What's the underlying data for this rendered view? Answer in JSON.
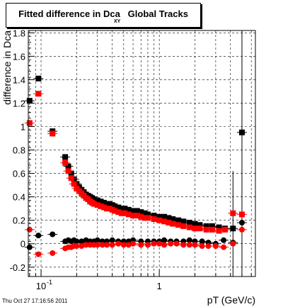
{
  "title": {
    "main": "Fitted difference in Dca",
    "sub": "XY",
    "suffix": "Global Tracks"
  },
  "timestamp": "Thu Oct 27 17:16:56 2011",
  "chart_data": {
    "type": "scatter",
    "title": "Fitted difference in Dca XY Global Tracks",
    "xlabel": "pT (GeV/c)",
    "ylabel": "difference in Dca",
    "x_scale": "log",
    "xlim": [
      0.078,
      6.5
    ],
    "ylim": [
      -0.28,
      1.82
    ],
    "yticks": [
      -0.2,
      0,
      0.2,
      0.4,
      0.6,
      0.8,
      1,
      1.2,
      1.4,
      1.6,
      1.8
    ],
    "ytick_labels": [
      "-0.2",
      "0",
      "0.2",
      "0.4",
      "0.6",
      "0.8",
      "1",
      "1.2",
      "1.4",
      "1.6",
      "1.8"
    ],
    "xtick_labels": [
      {
        "value": 0.1,
        "label": "10",
        "sup": "-1"
      },
      {
        "value": 1,
        "label": "1",
        "sup": ""
      }
    ],
    "grid": true,
    "colors": {
      "black": "#000000",
      "red": "#ff0000"
    },
    "series": [
      {
        "color": "black",
        "marker": "square",
        "x": [
          0.08,
          0.095,
          0.125,
          0.16,
          0.17,
          0.18,
          0.19,
          0.2,
          0.21,
          0.22,
          0.23,
          0.24,
          0.25,
          0.26,
          0.27,
          0.28,
          0.3,
          0.32,
          0.34,
          0.36,
          0.38,
          0.4,
          0.42,
          0.45,
          0.48,
          0.51,
          0.55,
          0.6,
          0.65,
          0.7,
          0.75,
          0.8,
          0.9,
          1.0,
          1.1,
          1.2,
          1.3,
          1.45,
          1.6,
          1.8,
          2.0,
          2.2,
          2.5,
          2.8,
          3.2,
          3.6,
          4.2,
          5.0
        ],
        "y": [
          1.22,
          1.41,
          0.96,
          0.74,
          0.66,
          0.6,
          0.55,
          0.51,
          0.48,
          0.46,
          0.44,
          0.42,
          0.41,
          0.4,
          0.39,
          0.38,
          0.37,
          0.36,
          0.35,
          0.34,
          0.34,
          0.33,
          0.32,
          0.31,
          0.3,
          0.3,
          0.29,
          0.28,
          0.28,
          0.27,
          0.26,
          0.25,
          0.24,
          0.23,
          0.23,
          0.22,
          0.21,
          0.2,
          0.19,
          0.18,
          0.17,
          0.16,
          0.15,
          0.15,
          0.14,
          0.13,
          0.13,
          0.95
        ]
      },
      {
        "color": "red",
        "marker": "square",
        "x": [
          0.08,
          0.095,
          0.125,
          0.16,
          0.17,
          0.18,
          0.19,
          0.2,
          0.21,
          0.22,
          0.23,
          0.24,
          0.25,
          0.26,
          0.27,
          0.28,
          0.3,
          0.32,
          0.34,
          0.36,
          0.38,
          0.4,
          0.42,
          0.45,
          0.48,
          0.51,
          0.55,
          0.6,
          0.65,
          0.7,
          0.75,
          0.8,
          0.9,
          1.0,
          1.1,
          1.2,
          1.3,
          1.45,
          1.6,
          1.8,
          2.0,
          2.2,
          2.5,
          2.8,
          3.2,
          3.6,
          4.2,
          5.0
        ],
        "y": [
          1.03,
          1.28,
          0.94,
          0.69,
          0.62,
          0.56,
          0.51,
          0.47,
          0.45,
          0.43,
          0.41,
          0.39,
          0.38,
          0.36,
          0.35,
          0.34,
          0.33,
          0.32,
          0.31,
          0.3,
          0.3,
          0.29,
          0.28,
          0.27,
          0.26,
          0.26,
          0.25,
          0.24,
          0.24,
          0.23,
          0.22,
          0.22,
          0.21,
          0.2,
          0.19,
          0.18,
          0.17,
          0.16,
          0.15,
          0.14,
          0.13,
          0.13,
          0.12,
          0.12,
          0.11,
          0.12,
          0.26,
          0.25
        ]
      },
      {
        "color": "black",
        "marker": "circle",
        "x": [
          0.08,
          0.095,
          0.125,
          0.16,
          0.17,
          0.18,
          0.19,
          0.2,
          0.22,
          0.24,
          0.26,
          0.28,
          0.3,
          0.33,
          0.36,
          0.4,
          0.45,
          0.5,
          0.55,
          0.6,
          0.7,
          0.8,
          0.9,
          1.0,
          1.1,
          1.25,
          1.4,
          1.6,
          1.8,
          2.0,
          2.3,
          2.6,
          3.0,
          3.5,
          4.2,
          5.0
        ],
        "y": [
          -0.03,
          0.07,
          0.08,
          0.02,
          0.03,
          0.02,
          0.03,
          0.02,
          0.02,
          0.03,
          0.02,
          0.02,
          0.03,
          0.02,
          0.02,
          0.03,
          0.02,
          0.02,
          0.02,
          0.03,
          0.02,
          0.02,
          0.02,
          0.02,
          0.03,
          0.02,
          0.02,
          0.02,
          0.03,
          0.02,
          0.02,
          0.01,
          0.0,
          0.03,
          0.01,
          0.18
        ]
      },
      {
        "color": "red",
        "marker": "circle",
        "x": [
          0.08,
          0.095,
          0.125,
          0.16,
          0.17,
          0.18,
          0.19,
          0.2,
          0.22,
          0.24,
          0.26,
          0.28,
          0.3,
          0.33,
          0.36,
          0.4,
          0.45,
          0.5,
          0.55,
          0.6,
          0.7,
          0.8,
          0.9,
          1.0,
          1.1,
          1.25,
          1.4,
          1.6,
          1.8,
          2.0,
          2.3,
          2.6,
          3.0,
          3.5,
          4.2,
          5.0
        ],
        "y": [
          0.12,
          -0.09,
          -0.08,
          -0.04,
          -0.03,
          -0.03,
          -0.02,
          -0.02,
          -0.02,
          -0.01,
          -0.01,
          -0.01,
          -0.01,
          -0.01,
          -0.01,
          -0.01,
          0.0,
          -0.01,
          -0.01,
          0.0,
          -0.01,
          -0.01,
          0.0,
          0.0,
          -0.01,
          0.0,
          0.0,
          -0.01,
          -0.01,
          -0.01,
          -0.02,
          -0.02,
          -0.02,
          -0.03,
          0.0,
          0.12
        ]
      }
    ]
  }
}
